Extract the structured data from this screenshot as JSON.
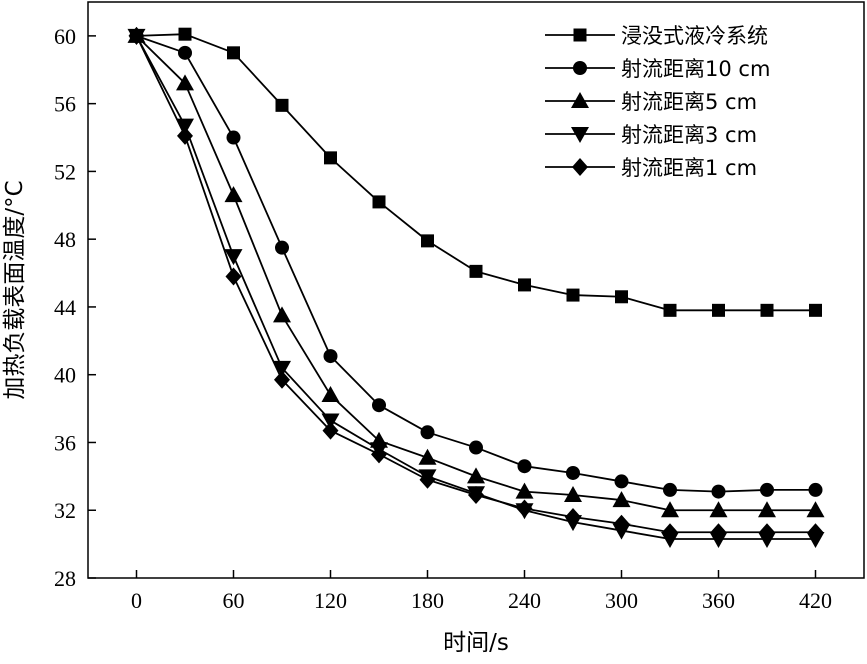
{
  "chart_data": {
    "type": "line",
    "xlabel": "时间/s",
    "ylabel": "加热负载表面温度/°C",
    "xlim": [
      -30,
      450
    ],
    "ylim": [
      28,
      62
    ],
    "xticks": [
      0,
      60,
      120,
      180,
      240,
      300,
      360,
      420
    ],
    "yticks": [
      28,
      32,
      36,
      40,
      44,
      48,
      52,
      56,
      60
    ],
    "grid": false,
    "legend_position": "top-right",
    "x": [
      0,
      30,
      60,
      90,
      120,
      150,
      180,
      210,
      240,
      270,
      300,
      330,
      360,
      390,
      420
    ],
    "series": [
      {
        "name": "浸没式液冷系统",
        "marker": "square",
        "values": [
          60,
          60.1,
          59,
          55.9,
          52.8,
          50.2,
          47.9,
          46.1,
          45.3,
          44.7,
          44.6,
          43.8,
          43.8,
          43.8,
          43.8
        ]
      },
      {
        "name": "射流距离10 cm",
        "marker": "circle",
        "values": [
          60,
          59,
          54,
          47.5,
          41.1,
          38.2,
          36.6,
          35.7,
          34.6,
          34.2,
          33.7,
          33.2,
          33.1,
          33.2,
          33.2
        ]
      },
      {
        "name": "射流距离5 cm",
        "marker": "triangle-up",
        "values": [
          60,
          57.2,
          50.6,
          43.5,
          38.8,
          36.1,
          35.1,
          34,
          33.1,
          32.9,
          32.6,
          32,
          32,
          32,
          32
        ]
      },
      {
        "name": "射流距离3 cm",
        "marker": "triangle-down",
        "values": [
          60,
          54.7,
          47,
          40.4,
          37.3,
          35.6,
          34,
          33,
          32,
          31.3,
          30.8,
          30.3,
          30.3,
          30.3,
          30.3
        ]
      },
      {
        "name": "射流距离1 cm",
        "marker": "diamond",
        "values": [
          60,
          54.1,
          45.8,
          39.7,
          36.7,
          35.3,
          33.8,
          32.9,
          32.1,
          31.6,
          31.2,
          30.7,
          30.7,
          30.7,
          30.7
        ]
      }
    ]
  }
}
